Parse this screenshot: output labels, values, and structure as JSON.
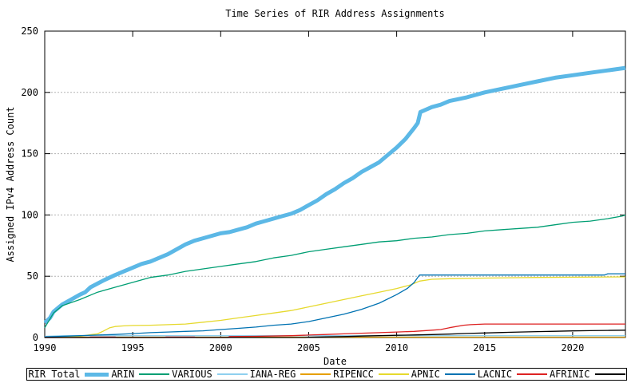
{
  "chart_data": {
    "type": "line",
    "title": "Time Series of RIR Address Assignments",
    "xlabel": "Date",
    "ylabel": "Assigned IPv4 Address Count",
    "xlim": [
      1990,
      2023
    ],
    "ylim": [
      0,
      250
    ],
    "xticks": [
      1990,
      1995,
      2000,
      2005,
      2010,
      2015,
      2020
    ],
    "yticks": [
      0,
      50,
      100,
      150,
      200,
      250
    ],
    "grid": "horizontal-dotted",
    "grid_color": "#b3b3b3",
    "axis_color": "#000000",
    "legend_position": "bottom-strip",
    "series": [
      {
        "name": "RIR Total",
        "color": "#5cb8e6",
        "width": 5,
        "points": [
          [
            1990,
            12
          ],
          [
            1990.3,
            16
          ],
          [
            1990.5,
            21
          ],
          [
            1991,
            27
          ],
          [
            1991.5,
            31
          ],
          [
            1992,
            35
          ],
          [
            1992.3,
            37
          ],
          [
            1992.6,
            41
          ],
          [
            1993,
            44
          ],
          [
            1993.4,
            47
          ],
          [
            1994,
            51
          ],
          [
            1994.5,
            54
          ],
          [
            1995,
            57
          ],
          [
            1995.5,
            60
          ],
          [
            1996,
            62
          ],
          [
            1996.5,
            65
          ],
          [
            1997,
            68
          ],
          [
            1997.5,
            72
          ],
          [
            1998,
            76
          ],
          [
            1998.5,
            79
          ],
          [
            1999,
            81
          ],
          [
            1999.5,
            83
          ],
          [
            2000,
            85
          ],
          [
            2000.5,
            86
          ],
          [
            2001,
            88
          ],
          [
            2001.5,
            90
          ],
          [
            2002,
            93
          ],
          [
            2002.5,
            95
          ],
          [
            2003,
            97
          ],
          [
            2003.5,
            99
          ],
          [
            2004,
            101
          ],
          [
            2004.5,
            104
          ],
          [
            2005,
            108
          ],
          [
            2005.5,
            112
          ],
          [
            2006,
            117
          ],
          [
            2006.5,
            121
          ],
          [
            2007,
            126
          ],
          [
            2007.5,
            130
          ],
          [
            2008,
            135
          ],
          [
            2008.5,
            139
          ],
          [
            2009,
            143
          ],
          [
            2009.5,
            149
          ],
          [
            2010,
            155
          ],
          [
            2010.5,
            162
          ],
          [
            2011,
            171
          ],
          [
            2011.2,
            175
          ],
          [
            2011.35,
            184
          ],
          [
            2012,
            188
          ],
          [
            2012.5,
            190
          ],
          [
            2013,
            193
          ],
          [
            2014,
            196
          ],
          [
            2015,
            200
          ],
          [
            2016,
            203
          ],
          [
            2017,
            206
          ],
          [
            2018,
            209
          ],
          [
            2019,
            212
          ],
          [
            2020,
            214
          ],
          [
            2021,
            216
          ],
          [
            2022,
            218
          ],
          [
            2023,
            220
          ]
        ]
      },
      {
        "name": "ARIN",
        "color": "#009e73",
        "width": 1.3,
        "points": [
          [
            1990,
            8
          ],
          [
            1990.5,
            20
          ],
          [
            1991,
            26
          ],
          [
            1992,
            31
          ],
          [
            1993,
            37
          ],
          [
            1994,
            41
          ],
          [
            1995,
            45
          ],
          [
            1996,
            49
          ],
          [
            1997,
            51
          ],
          [
            1998,
            54
          ],
          [
            1999,
            56
          ],
          [
            2000,
            58
          ],
          [
            2001,
            60
          ],
          [
            2002,
            62
          ],
          [
            2003,
            65
          ],
          [
            2004,
            67
          ],
          [
            2005,
            70
          ],
          [
            2006,
            72
          ],
          [
            2007,
            74
          ],
          [
            2008,
            76
          ],
          [
            2009,
            78
          ],
          [
            2010,
            79
          ],
          [
            2011,
            81
          ],
          [
            2012,
            82
          ],
          [
            2013,
            84
          ],
          [
            2014,
            85
          ],
          [
            2015,
            87
          ],
          [
            2016,
            88
          ],
          [
            2017,
            89
          ],
          [
            2018,
            90
          ],
          [
            2019,
            92
          ],
          [
            2020,
            94
          ],
          [
            2021,
            95
          ],
          [
            2022,
            97
          ],
          [
            2022.8,
            99
          ],
          [
            2023,
            100
          ]
        ]
      },
      {
        "name": "VARIOUS",
        "color": "#8fd0ef",
        "width": 1.3,
        "points": [
          [
            1990,
            1
          ],
          [
            1991,
            1.5
          ],
          [
            2023,
            1.5
          ]
        ]
      },
      {
        "name": "IANA-REG",
        "color": "#e69f00",
        "width": 1.3,
        "points": [
          [
            1990,
            0.3
          ],
          [
            2023,
            0.3
          ]
        ]
      },
      {
        "name": "RIPENCC",
        "color": "#e6d92e",
        "width": 1.3,
        "points": [
          [
            1990,
            0.3
          ],
          [
            1991,
            0.5
          ],
          [
            1992,
            1
          ],
          [
            1992.7,
            2.5
          ],
          [
            1993,
            3
          ],
          [
            1993.3,
            5
          ],
          [
            1993.7,
            8
          ],
          [
            1994,
            9
          ],
          [
            1994.5,
            9.5
          ],
          [
            1995,
            9.8
          ],
          [
            1996,
            10
          ],
          [
            1997,
            10.5
          ],
          [
            1998,
            11
          ],
          [
            1999,
            12.5
          ],
          [
            2000,
            14
          ],
          [
            2001,
            16
          ],
          [
            2002,
            18
          ],
          [
            2003,
            20
          ],
          [
            2004,
            22
          ],
          [
            2005,
            25
          ],
          [
            2006,
            28
          ],
          [
            2007,
            31
          ],
          [
            2008,
            34
          ],
          [
            2009,
            37
          ],
          [
            2010,
            40
          ],
          [
            2010.8,
            43
          ],
          [
            2011.3,
            46
          ],
          [
            2012,
            47.5
          ],
          [
            2013,
            48
          ],
          [
            2015,
            48.5
          ],
          [
            2018,
            49
          ],
          [
            2023,
            49.5
          ]
        ]
      },
      {
        "name": "APNIC",
        "color": "#0072b2",
        "width": 1.3,
        "points": [
          [
            1990,
            0.5
          ],
          [
            1991,
            1
          ],
          [
            1992,
            1.5
          ],
          [
            1993,
            2
          ],
          [
            1994,
            2.5
          ],
          [
            1995,
            3.2
          ],
          [
            1996,
            4
          ],
          [
            1997,
            4.5
          ],
          [
            1998,
            5
          ],
          [
            1999,
            5.5
          ],
          [
            2000,
            6.5
          ],
          [
            2001,
            7.5
          ],
          [
            2002,
            8.5
          ],
          [
            2003,
            10
          ],
          [
            2004,
            11
          ],
          [
            2005,
            13
          ],
          [
            2006,
            16
          ],
          [
            2007,
            19
          ],
          [
            2008,
            23
          ],
          [
            2009,
            28
          ],
          [
            2010,
            35
          ],
          [
            2010.6,
            40
          ],
          [
            2011,
            45
          ],
          [
            2011.15,
            48
          ],
          [
            2011.3,
            51
          ],
          [
            2012,
            51
          ],
          [
            2021.8,
            51
          ],
          [
            2022,
            52
          ],
          [
            2023,
            52
          ]
        ]
      },
      {
        "name": "LACNIC",
        "color": "#dd2222",
        "width": 1.3,
        "points": [
          [
            1990,
            0
          ],
          [
            1992.5,
            0
          ],
          [
            1992.6,
            0.4
          ],
          [
            1994,
            0.4
          ],
          [
            1994.1,
            0
          ],
          [
            1996.8,
            0
          ],
          [
            1996.9,
            0.4
          ],
          [
            1998.5,
            0.4
          ],
          [
            1998.6,
            0
          ],
          [
            2000.4,
            0
          ],
          [
            2000.5,
            0.8
          ],
          [
            2002,
            1
          ],
          [
            2004,
            1.5
          ],
          [
            2005,
            2
          ],
          [
            2006,
            2.5
          ],
          [
            2007,
            3
          ],
          [
            2008,
            3.5
          ],
          [
            2009,
            4
          ],
          [
            2010,
            4.5
          ],
          [
            2011,
            5
          ],
          [
            2012,
            6
          ],
          [
            2012.5,
            6.5
          ],
          [
            2013,
            8
          ],
          [
            2013.8,
            10
          ],
          [
            2014.2,
            10.5
          ],
          [
            2015,
            11
          ],
          [
            2023,
            11
          ]
        ]
      },
      {
        "name": "AFRINIC",
        "color": "#000000",
        "width": 1.3,
        "points": [
          [
            1990,
            0
          ],
          [
            2004.8,
            0
          ],
          [
            2005,
            0.2
          ],
          [
            2006,
            0.5
          ],
          [
            2007,
            0.8
          ],
          [
            2008,
            1.2
          ],
          [
            2009,
            1.5
          ],
          [
            2010,
            1.8
          ],
          [
            2011,
            2.1
          ],
          [
            2012,
            2.4
          ],
          [
            2013,
            2.8
          ],
          [
            2014,
            3.3
          ],
          [
            2015,
            3.7
          ],
          [
            2016,
            4.1
          ],
          [
            2017,
            4.5
          ],
          [
            2018,
            4.8
          ],
          [
            2019,
            5.1
          ],
          [
            2020,
            5.4
          ],
          [
            2021,
            5.6
          ],
          [
            2022,
            5.8
          ],
          [
            2023,
            6
          ]
        ]
      }
    ]
  }
}
